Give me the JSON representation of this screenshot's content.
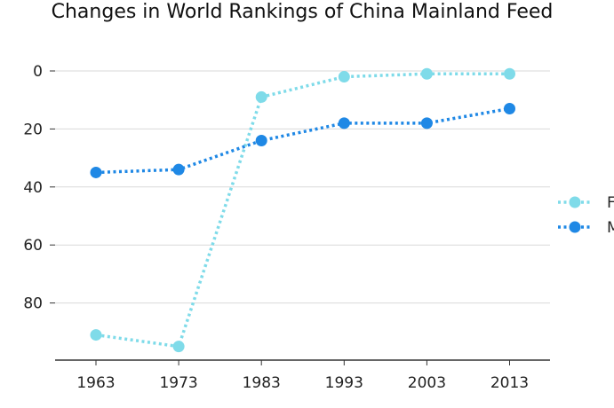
{
  "chart_data": {
    "type": "line",
    "title": "Changes in World Rankings of China Mainland Feed",
    "xlabel": "",
    "ylabel": "",
    "x": [
      1963,
      1973,
      1983,
      1993,
      2003,
      2013
    ],
    "x_tick_labels": [
      "1963",
      "1973",
      "1983",
      "1993",
      "2003",
      "2013"
    ],
    "y_inverted": true,
    "ylim": [
      99,
      0
    ],
    "y_ticks": [
      0,
      20,
      40,
      60,
      80
    ],
    "y_tick_labels": [
      "0",
      "20",
      "40",
      "60",
      "80"
    ],
    "grid": "horizontal",
    "legend_position": "right",
    "series": [
      {
        "name": "F",
        "color": "#7fdbe9",
        "marker": "circle",
        "line_style": "dotted",
        "values": [
          91,
          95,
          9,
          2,
          1,
          1
        ]
      },
      {
        "name": "M",
        "color": "#1f88e5",
        "marker": "circle",
        "line_style": "dotted",
        "values": [
          35,
          34,
          24,
          18,
          18,
          13
        ]
      }
    ]
  }
}
